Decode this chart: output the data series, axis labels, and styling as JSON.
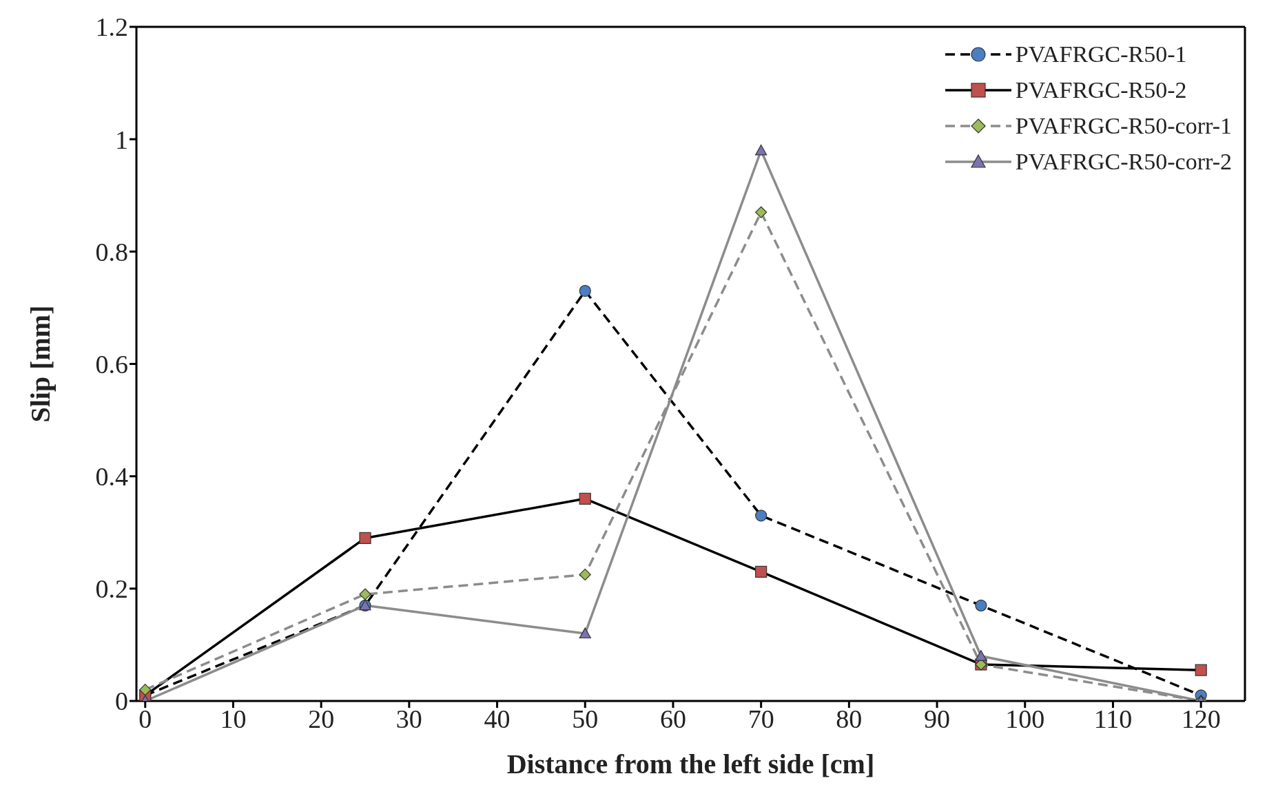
{
  "chart_data": {
    "type": "line",
    "xlabel": "Distance from the left side [cm]",
    "ylabel": "Slip [mm]",
    "x": [
      0,
      25,
      50,
      70,
      95,
      120
    ],
    "xlim": [
      -1,
      125
    ],
    "xticks": [
      0,
      10,
      20,
      30,
      40,
      50,
      60,
      70,
      80,
      90,
      100,
      110,
      120
    ],
    "ylim": [
      0,
      1.2
    ],
    "yticks": [
      0,
      0.2,
      0.4,
      0.6,
      0.8,
      1,
      1.2
    ],
    "legend": "top right",
    "series": [
      {
        "name": "PVAFRGC-R50-1",
        "color": "#000000",
        "colors": [
          "#4a7fc1",
          "#4a7fc1",
          "#4a7fc1",
          "#4a7fc1",
          "#4a7fc1",
          "#4a7fc1"
        ],
        "marker": "circle",
        "line_style": "dashed",
        "values": [
          0.01,
          0.17,
          0.73,
          0.33,
          0.17,
          0.01
        ]
      },
      {
        "name": "PVAFRGC-R50-2",
        "color": "#000000",
        "colors": [
          "#c0504d",
          "#c0504d",
          "#c0504d",
          "#c0504d",
          "#c0504d",
          "#c0504d"
        ],
        "marker": "square",
        "line_style": "solid",
        "values": [
          0.01,
          0.29,
          0.36,
          0.23,
          0.065,
          0.055
        ]
      },
      {
        "name": "PVAFRGC-R50-corr-1",
        "color": "#8c8c8c",
        "colors": [
          "#9bbb59",
          "#9bbb59",
          "#9bbb59",
          "#9bbb59",
          "#9bbb59",
          "#9bbb59"
        ],
        "marker": "diamond",
        "line_style": "dashed",
        "values": [
          0.02,
          0.19,
          0.225,
          0.87,
          0.065,
          0
        ]
      },
      {
        "name": "PVAFRGC-R50-corr-2",
        "color": "#8c8c8c",
        "colors": [
          "#7b72b0",
          "#7b72b0",
          "#7b72b0",
          "#7b72b0",
          "#7b72b0",
          "#7b72b0"
        ],
        "marker": "triangle",
        "line_style": "solid",
        "values": [
          0,
          0.17,
          0.12,
          0.98,
          0.08,
          0
        ]
      }
    ]
  }
}
